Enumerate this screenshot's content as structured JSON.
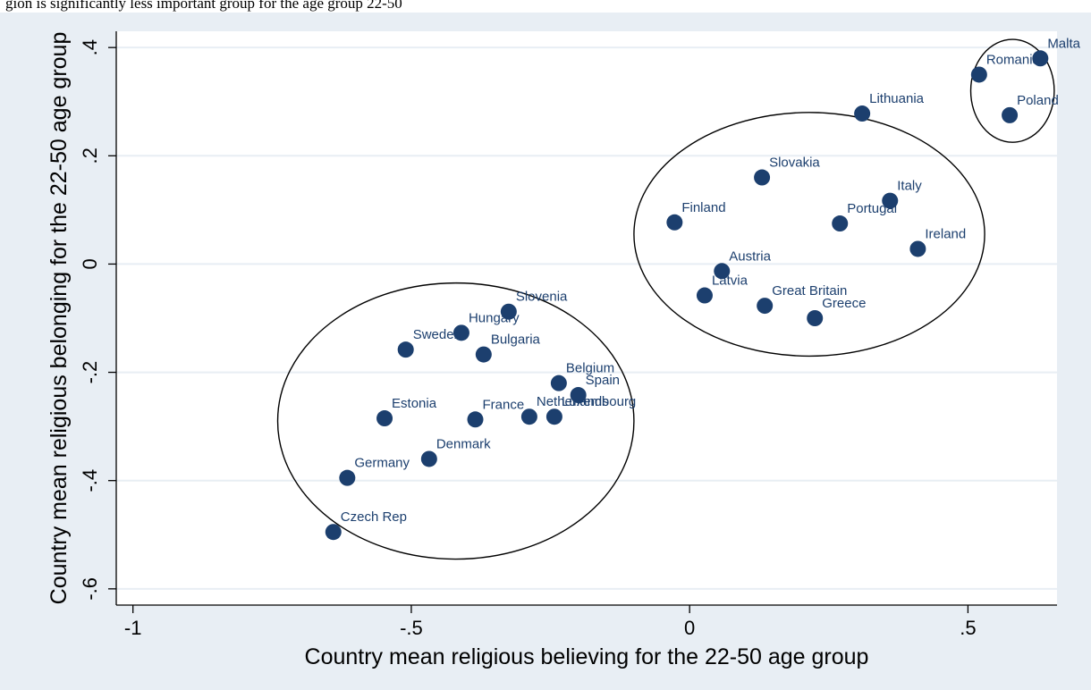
{
  "header_fragment": "gion is significantly less important group for the age group 22-50",
  "colors": {
    "outer_background": "#e8eef4",
    "plot_background": "#ffffff",
    "gridline": "#e8eef4",
    "marker": "#1c3f6e",
    "label": "#1c3f6e"
  },
  "chart_data": {
    "type": "scatter",
    "xlabel": "Country mean religious believing for the 22-50 age group",
    "ylabel": "Country mean religious belonging for the 22-50 age group",
    "xlim": [
      -1.03,
      0.66
    ],
    "ylim": [
      -0.63,
      0.43
    ],
    "xticks": [
      -1,
      -0.5,
      0,
      0.5
    ],
    "xtick_labels": [
      "-1",
      "-.5",
      "0",
      ".5"
    ],
    "yticks": [
      -0.6,
      -0.4,
      -0.2,
      0,
      0.2,
      0.4
    ],
    "ytick_labels": [
      "-.6",
      "-.4",
      "-.2",
      "0",
      ".2",
      ".4"
    ],
    "grid": "horizontal",
    "points": [
      {
        "label": "Malta",
        "x": 0.63,
        "y": 0.38
      },
      {
        "label": "Romania",
        "x": 0.52,
        "y": 0.35
      },
      {
        "label": "Poland",
        "x": 0.575,
        "y": 0.275
      },
      {
        "label": "Lithuania",
        "x": 0.31,
        "y": 0.278
      },
      {
        "label": "Slovakia",
        "x": 0.13,
        "y": 0.16
      },
      {
        "label": "Italy",
        "x": 0.36,
        "y": 0.117
      },
      {
        "label": "Finland",
        "x": -0.027,
        "y": 0.077
      },
      {
        "label": "Portugal",
        "x": 0.27,
        "y": 0.075
      },
      {
        "label": "Ireland",
        "x": 0.41,
        "y": 0.028
      },
      {
        "label": "Austria",
        "x": 0.058,
        "y": -0.013
      },
      {
        "label": "Latvia",
        "x": 0.027,
        "y": -0.058
      },
      {
        "label": "Great Britain",
        "x": 0.135,
        "y": -0.077
      },
      {
        "label": "Greece",
        "x": 0.225,
        "y": -0.1
      },
      {
        "label": "Slovenia",
        "x": -0.325,
        "y": -0.088
      },
      {
        "label": "Hungary",
        "x": -0.41,
        "y": -0.127
      },
      {
        "label": "Sweden",
        "x": -0.51,
        "y": -0.158
      },
      {
        "label": "Bulgaria",
        "x": -0.37,
        "y": -0.167
      },
      {
        "label": "Belgium",
        "x": -0.235,
        "y": -0.22
      },
      {
        "label": "Spain",
        "x": -0.2,
        "y": -0.242
      },
      {
        "label": "Estonia",
        "x": -0.548,
        "y": -0.285
      },
      {
        "label": "France",
        "x": -0.385,
        "y": -0.287
      },
      {
        "label": "Netherlands",
        "x": -0.288,
        "y": -0.282
      },
      {
        "label": "Luxembourg",
        "x": -0.243,
        "y": -0.282
      },
      {
        "label": "Denmark",
        "x": -0.468,
        "y": -0.36
      },
      {
        "label": "Germany",
        "x": -0.615,
        "y": -0.395
      },
      {
        "label": "Czech Rep",
        "x": -0.64,
        "y": -0.495
      }
    ],
    "cluster_ellipses": [
      {
        "cx": -0.42,
        "cy": -0.29,
        "rx": 0.32,
        "ry": 0.255
      },
      {
        "cx": 0.215,
        "cy": 0.055,
        "rx": 0.315,
        "ry": 0.225
      },
      {
        "cx": 0.58,
        "cy": 0.32,
        "rx": 0.075,
        "ry": 0.095
      }
    ]
  }
}
